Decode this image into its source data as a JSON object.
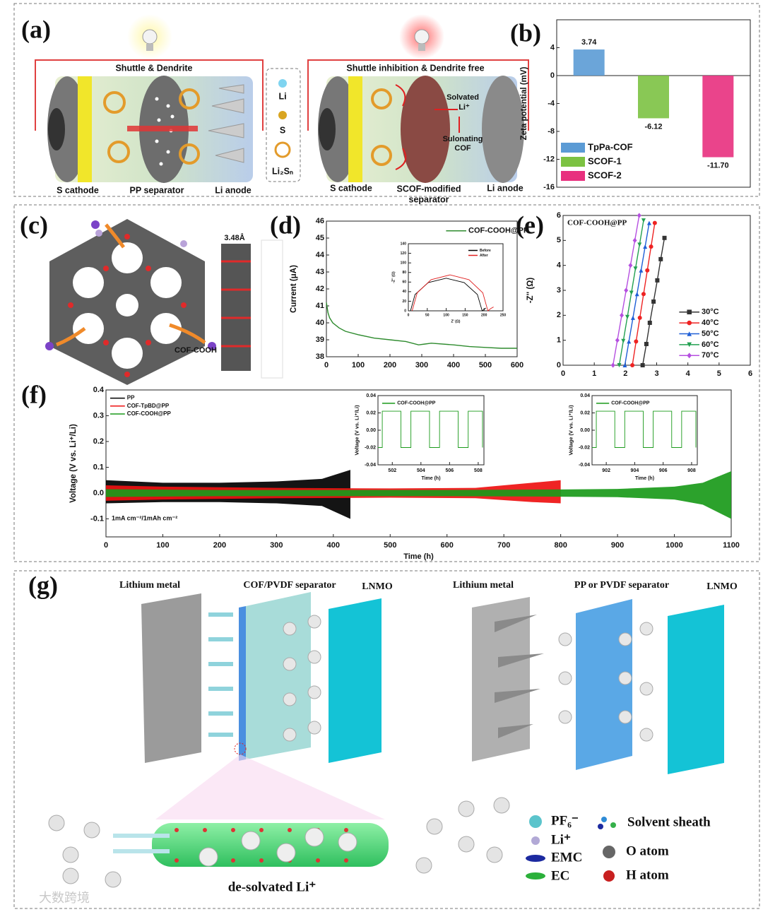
{
  "panel_labels": [
    "(a)",
    "(b)",
    "(c)",
    "(d)",
    "(e)",
    "(f)",
    "(g)"
  ],
  "panel_a": {
    "left": {
      "title": "Shuttle & Dendrite",
      "labels": [
        "S cathode",
        "PP separator",
        "Li anode"
      ]
    },
    "legend": [
      "Li",
      "S",
      "Li₂Sₙ"
    ],
    "right": {
      "title": "Shuttle inhibition & Dendrite free",
      "callouts": [
        "Solvated",
        "Li⁺",
        "Sulonating",
        "COF"
      ],
      "labels": [
        "S cathode",
        "SCOF-modified",
        "separator",
        "Li anode"
      ]
    }
  },
  "panel_c": {
    "spacing": "3.48Å",
    "label": "COF-COOH"
  },
  "panel_g": {
    "left": [
      "Lithium metal",
      "COF/PVDF separator",
      "LNMO"
    ],
    "right": [
      "Lithium metal",
      "PP or PVDF separator",
      "LNMO"
    ],
    "caption": "de-solvated Li⁺",
    "legend": [
      "PF₆⁻",
      "Li⁺",
      "EMC",
      "EC",
      "Solvent sheath",
      "O atom",
      "H atom"
    ]
  },
  "watermark": "大数跨境",
  "chart_data": [
    {
      "type": "bar",
      "ylabel": "Zeta potential (mV)",
      "categories": [
        "TpPa-COF",
        "SCOF-1",
        "SCOF-2"
      ],
      "values": [
        3.74,
        -6.12,
        -11.7
      ],
      "value_labels": [
        "3.74",
        "-6.12",
        "-11.70"
      ],
      "colors": [
        "#5b9bd5",
        "#7cc242",
        "#e8307e"
      ],
      "ylim": [
        -16,
        8
      ],
      "yticks": [
        -16,
        -12,
        -8,
        -4,
        0,
        4
      ],
      "legend": "lower left"
    },
    {
      "type": "line",
      "ylabel": "Current (μA)",
      "x": [
        0,
        5,
        10,
        20,
        40,
        60,
        100,
        150,
        200,
        250,
        290,
        310,
        330,
        400,
        450,
        500,
        550,
        600
      ],
      "series": [
        {
          "name": "COF-COOH@PP",
          "color": "#2e8b2e",
          "values": [
            41.2,
            40.6,
            40.3,
            40.0,
            39.7,
            39.5,
            39.3,
            39.1,
            39.0,
            38.9,
            38.7,
            38.75,
            38.8,
            38.7,
            38.6,
            38.55,
            38.5,
            38.5
          ]
        }
      ],
      "xlim": [
        0,
        600
      ],
      "xticks": [
        0,
        100,
        200,
        300,
        400,
        500,
        600
      ],
      "ylim": [
        38,
        46
      ],
      "yticks": [
        38,
        39,
        40,
        41,
        42,
        43,
        44,
        45,
        46
      ],
      "legend": "upper right"
    },
    {
      "type": "line",
      "xlabel": "Z' (Ω)",
      "ylabel": "-Z'' (Ω)",
      "series": [
        {
          "name": "Before",
          "color": "#000000",
          "x": [
            5.7,
            17.7,
            52.5,
            100,
            147.5,
            182.3,
            195,
            205
          ],
          "values": [
            0,
            34,
            58.9,
            68,
            58.9,
            34,
            0,
            6
          ]
        },
        {
          "name": "After",
          "color": "#e02020",
          "x": [
            10,
            23.4,
            60,
            110,
            160,
            196.6,
            210,
            218,
            225
          ],
          "values": [
            0,
            37.5,
            65,
            75,
            65,
            37.5,
            0,
            5,
            8
          ]
        }
      ],
      "xlim": [
        0,
        250
      ],
      "xticks": [
        0,
        50,
        100,
        150,
        200,
        250
      ],
      "ylim": [
        0,
        140
      ],
      "yticks": [
        0,
        20,
        40,
        60,
        80,
        100,
        120,
        140
      ],
      "legend": "upper right"
    },
    {
      "type": "line",
      "title": "COF-COOH@PP",
      "ylabel": "-Z'' (Ω)",
      "series": [
        {
          "name": "30°C",
          "color": "#333333",
          "marker": "square",
          "x": [
            2.55,
            2.67,
            2.78,
            2.9,
            3.02,
            3.13,
            3.25
          ],
          "values": [
            0,
            0.85,
            1.7,
            2.55,
            3.4,
            4.25,
            5.1
          ]
        },
        {
          "name": "40°C",
          "color": "#ee2222",
          "marker": "circle",
          "x": [
            2.22,
            2.34,
            2.46,
            2.58,
            2.7,
            2.82,
            2.94
          ],
          "values": [
            0,
            0.95,
            1.9,
            2.85,
            3.8,
            4.75,
            5.7
          ]
        },
        {
          "name": "50°C",
          "color": "#1f5fd6",
          "marker": "triangle",
          "x": [
            1.98,
            2.11,
            2.24,
            2.37,
            2.5,
            2.63,
            2.76
          ],
          "values": [
            0,
            0.95,
            1.9,
            2.85,
            3.8,
            4.75,
            5.7
          ]
        },
        {
          "name": "60°C",
          "color": "#22a050",
          "marker": "triangle-down",
          "x": [
            1.8,
            1.93,
            2.06,
            2.19,
            2.32,
            2.45,
            2.58
          ],
          "values": [
            0,
            0.97,
            1.93,
            2.9,
            3.87,
            4.83,
            5.8
          ]
        },
        {
          "name": "70°C",
          "color": "#b54fe0",
          "marker": "diamond",
          "x": [
            1.6,
            1.74,
            1.88,
            2.02,
            2.16,
            2.3,
            2.44
          ],
          "values": [
            0,
            1,
            2,
            3,
            4,
            5,
            6
          ]
        }
      ],
      "xlim": [
        0,
        6
      ],
      "xticks": [
        0,
        1,
        2,
        3,
        4,
        5,
        6
      ],
      "ylim": [
        0,
        6
      ],
      "yticks": [
        0,
        1,
        2,
        3,
        4,
        5,
        6
      ],
      "legend": "lower right"
    },
    {
      "type": "band",
      "xlabel": "Time (h)",
      "ylabel": "Voltage (V vs. Li⁺/Li)",
      "annotation": "1mA cm⁻²/1mAh cm⁻²",
      "series": [
        {
          "name": "PP",
          "color": "#000000",
          "x": [
            0,
            100,
            200,
            300,
            380,
            430
          ],
          "upper": [
            0.05,
            0.04,
            0.04,
            0.045,
            0.055,
            0.09
          ],
          "lower": [
            -0.04,
            -0.035,
            -0.035,
            -0.04,
            -0.05,
            -0.1
          ]
        },
        {
          "name": "COF-TpBD@PP",
          "color": "#ee1111",
          "x": [
            0,
            100,
            300,
            500,
            650,
            750,
            800
          ],
          "upper": [
            0.03,
            0.025,
            0.02,
            0.018,
            0.02,
            0.04,
            0.05
          ],
          "lower": [
            -0.03,
            -0.025,
            -0.02,
            -0.018,
            -0.02,
            -0.035,
            -0.04
          ]
        },
        {
          "name": "COF-COOH@PP",
          "color": "#1a9a1a",
          "x": [
            0,
            200,
            400,
            600,
            800,
            900,
            1000,
            1050,
            1100
          ],
          "upper": [
            0.015,
            0.012,
            0.012,
            0.012,
            0.014,
            0.016,
            0.025,
            0.04,
            0.085
          ],
          "lower": [
            -0.015,
            -0.012,
            -0.012,
            -0.012,
            -0.014,
            -0.016,
            -0.025,
            -0.045,
            -0.1
          ]
        }
      ],
      "xlim": [
        0,
        1100
      ],
      "xticks": [
        0,
        100,
        200,
        300,
        400,
        500,
        600,
        700,
        800,
        900,
        1000,
        1100
      ],
      "ylim": [
        -0.17,
        0.4
      ],
      "yticks": [
        -0.1,
        {
          "value": 0,
          "label": "0.0"
        },
        0.1,
        0.2,
        0.3,
        0.4
      ],
      "legend": "upper left"
    },
    {
      "type": "line",
      "xlabel": "Time (h)",
      "ylabel": "Voltage (V vs. Li⁺/Li)",
      "series": [
        {
          "name": "COF-COOH@PP",
          "color": "#1a9a1a",
          "x": [
            501,
            501.3,
            501.3,
            502.6,
            502.6,
            503.3,
            503.3,
            504.6,
            504.6,
            505.3,
            505.3,
            506.6,
            506.6,
            507.3,
            507.3,
            508.3,
            508.3
          ],
          "values": [
            -0.02,
            -0.02,
            0.022,
            0.022,
            -0.02,
            -0.02,
            0.022,
            0.022,
            -0.02,
            -0.02,
            0.022,
            0.022,
            -0.02,
            -0.02,
            0.022,
            0.022,
            -0.02
          ]
        }
      ],
      "xlim": [
        501,
        508.4
      ],
      "xticks": [
        502,
        504,
        506,
        508
      ],
      "ylim": [
        -0.04,
        0.04
      ],
      "yticks": [
        -0.04,
        -0.02,
        {
          "value": 0,
          "label": "0.00"
        },
        0.02,
        0.04
      ],
      "legend": "upper left"
    },
    {
      "type": "line",
      "xlabel": "Time (h)",
      "ylabel": "Voltage (V vs. Li⁺/Li)",
      "series": [
        {
          "name": "COF-COOH@PP",
          "color": "#1a9a1a",
          "x": [
            901,
            901.3,
            901.3,
            902.6,
            902.6,
            903.3,
            903.3,
            904.6,
            904.6,
            905.3,
            905.3,
            906.6,
            906.6,
            907.3,
            907.3,
            908.3,
            908.3
          ],
          "values": [
            -0.02,
            -0.02,
            0.022,
            0.022,
            -0.02,
            -0.02,
            0.022,
            0.022,
            -0.02,
            -0.02,
            0.022,
            0.022,
            -0.02,
            -0.02,
            0.022,
            0.022,
            -0.02
          ]
        }
      ],
      "xlim": [
        901,
        908.4
      ],
      "xticks": [
        902,
        904,
        906,
        908
      ],
      "ylim": [
        -0.04,
        0.04
      ],
      "yticks": [
        -0.04,
        -0.02,
        {
          "value": 0,
          "label": "0.00"
        },
        0.02,
        0.04
      ],
      "legend": "upper left"
    }
  ]
}
